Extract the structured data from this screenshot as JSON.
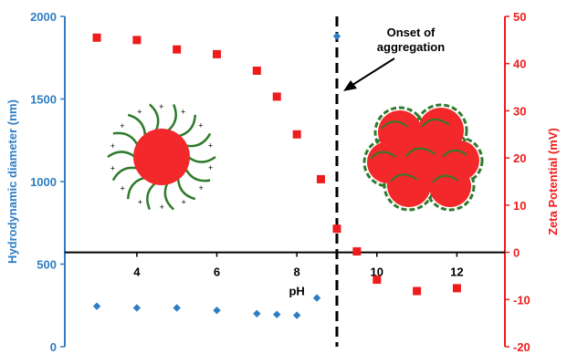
{
  "chart_data": {
    "type": "scatter",
    "xlabel": "pH",
    "ylabel_left": "Hydrodynamic diameter (nm)",
    "ylabel_right": "Zeta Potential (mV)",
    "xlim": [
      2.2,
      13.2
    ],
    "xticks": [
      "4",
      "6",
      "8",
      "10",
      "12"
    ],
    "xtick_values": [
      4,
      6,
      8,
      10,
      12
    ],
    "ylim_left": [
      0,
      2000
    ],
    "yticks_left": [
      "0",
      "500",
      "1000",
      "1500",
      "2000"
    ],
    "yticks_left_values": [
      0,
      500,
      1000,
      1500,
      2000
    ],
    "ylim_right": [
      -20,
      50
    ],
    "yticks_right": [
      "-20",
      "-10",
      "0",
      "10",
      "20",
      "30",
      "40",
      "50"
    ],
    "yticks_right_values": [
      -20,
      -10,
      0,
      10,
      20,
      30,
      40,
      50
    ],
    "x_axis_at_right_value": 0,
    "grid": false,
    "series": [
      {
        "axis": "left",
        "marker": "diamond",
        "color": "#2E7DC4",
        "x": [
          3,
          4,
          5,
          6,
          7,
          7.5,
          8,
          8.5,
          9
        ],
        "y": [
          245,
          235,
          235,
          220,
          200,
          195,
          190,
          295,
          1880
        ]
      },
      {
        "axis": "right",
        "marker": "square",
        "color": "#EE1C1C",
        "x": [
          3,
          4,
          5,
          6,
          7,
          7.5,
          8,
          8.6,
          9,
          9.5,
          10,
          11,
          12
        ],
        "y": [
          45.5,
          45,
          43,
          42,
          38.5,
          33,
          25,
          15.5,
          5,
          0.2,
          -5.8,
          -8.2,
          -7.6
        ]
      }
    ],
    "vline_x": 9,
    "annotation": {
      "line1": "Onset of",
      "line2": "aggregation"
    }
  },
  "colors": {
    "left_axis": "#2E7DC4",
    "right_axis": "#EE1C1C",
    "axis_black": "#000000",
    "particle_red": "#F2282A",
    "polymer_green": "#2F7A2C"
  }
}
